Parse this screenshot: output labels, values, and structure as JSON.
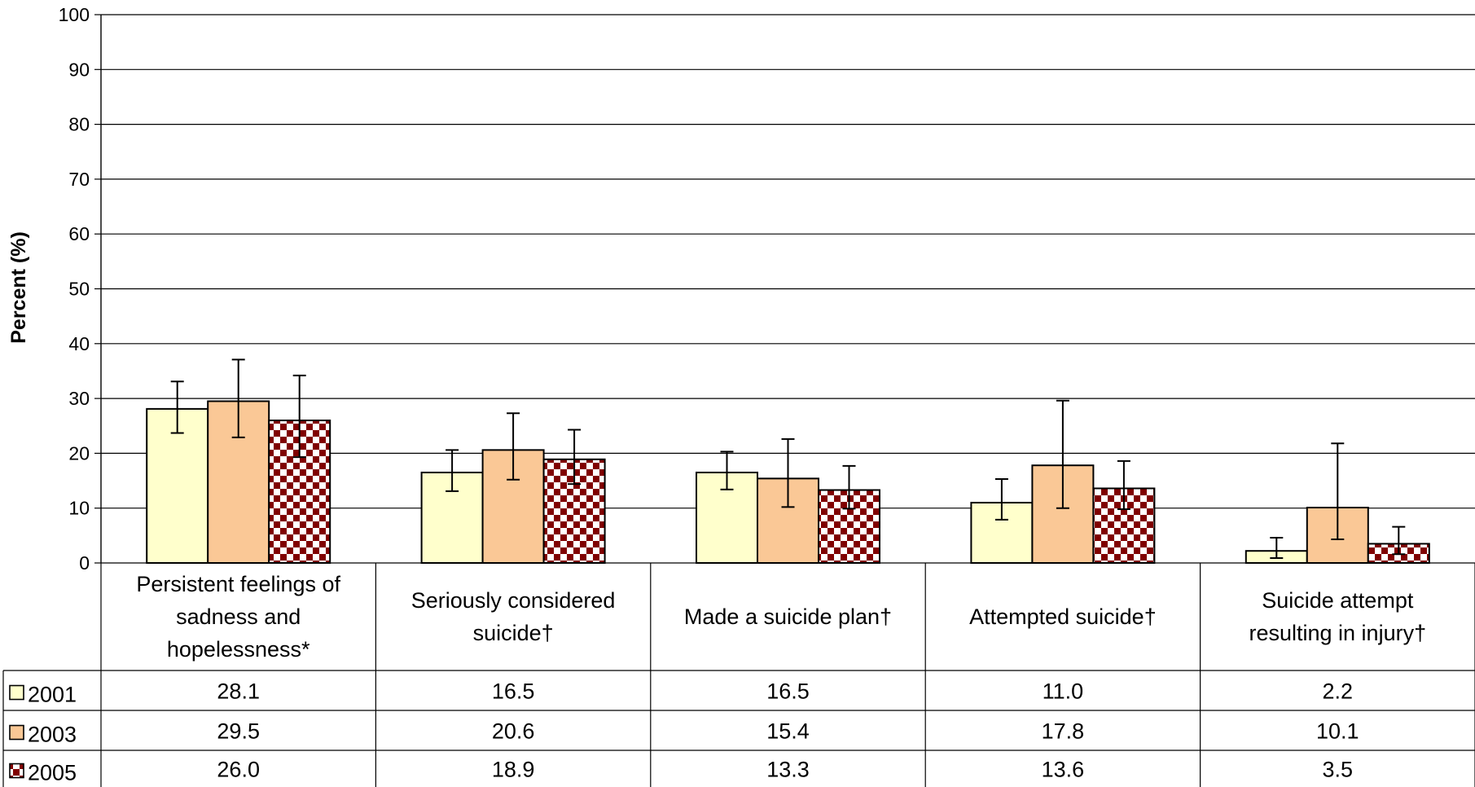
{
  "chart_data": {
    "type": "bar",
    "ylabel": "Percent (%)",
    "ylim": [
      0,
      100
    ],
    "yticks": [
      0,
      10,
      20,
      30,
      40,
      50,
      60,
      70,
      80,
      90,
      100
    ],
    "grid": true,
    "legend_placement": "data-table-left",
    "category_lines": [
      [
        "Persistent feelings of",
        "sadness and",
        "hopelessness*"
      ],
      [
        "Seriously considered",
        "suicide†"
      ],
      [
        "Made a suicide plan†"
      ],
      [
        "Attempted suicide†"
      ],
      [
        "Suicide attempt",
        "resulting in injury†"
      ]
    ],
    "series": [
      {
        "name": "2001",
        "color": "#ffffcc",
        "pattern": "solid",
        "values": [
          28.1,
          16.5,
          16.5,
          11.0,
          2.2
        ],
        "labels": [
          "28.1",
          "16.5",
          "16.5",
          "11.0",
          "2.2"
        ],
        "ci": [
          [
            23.7,
            33.1
          ],
          [
            13.1,
            20.6
          ],
          [
            13.4,
            20.3
          ],
          [
            7.9,
            15.3
          ],
          [
            0.9,
            4.6
          ]
        ]
      },
      {
        "name": "2003",
        "color": "#fac896",
        "pattern": "solid",
        "values": [
          29.5,
          20.6,
          15.4,
          17.8,
          10.1
        ],
        "labels": [
          "29.5",
          "20.6",
          "15.4",
          "17.8",
          "10.1"
        ],
        "ci": [
          [
            22.9,
            37.1
          ],
          [
            15.2,
            27.3
          ],
          [
            10.2,
            22.6
          ],
          [
            10.0,
            29.6
          ],
          [
            4.3,
            21.8
          ]
        ]
      },
      {
        "name": "2005",
        "color": "#800000",
        "pattern": "zigzag",
        "values": [
          26.0,
          18.9,
          13.3,
          13.6,
          3.5
        ],
        "labels": [
          "26.0",
          "18.9",
          "13.3",
          "13.6",
          "3.5"
        ],
        "ci": [
          [
            19.3,
            34.2
          ],
          [
            14.4,
            24.3
          ],
          [
            9.9,
            17.7
          ],
          [
            9.8,
            18.6
          ],
          [
            1.6,
            6.6
          ]
        ]
      }
    ]
  }
}
